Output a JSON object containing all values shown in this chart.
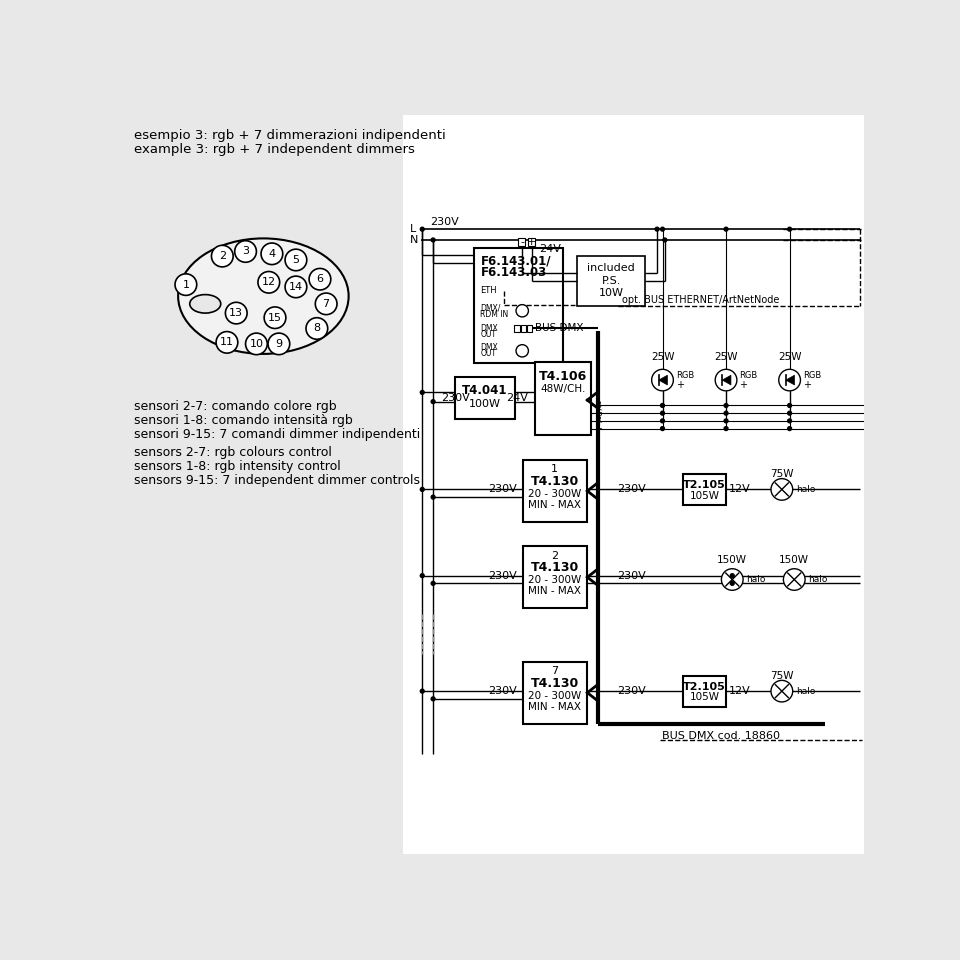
{
  "bg_color": "#e8e8e8",
  "white_bg": "#ffffff",
  "title_line1": "esempio 3: rgb + 7 dimmerazioni indipendenti",
  "title_line2": "example 3: rgb + 7 independent dimmers",
  "desc_line1": "sensori 2-7: comando colore rgb",
  "desc_line2": "sensori 1-8: comando intensità rgb",
  "desc_line3": "sensori 9-15: 7 comandi dimmer indipendenti",
  "desc_line4": "sensors 2-7: rgb colours control",
  "desc_line5": "sensors 1-8: rgb intensity control",
  "desc_line6": "sensors 9-15: 7 independent dimmer controls"
}
